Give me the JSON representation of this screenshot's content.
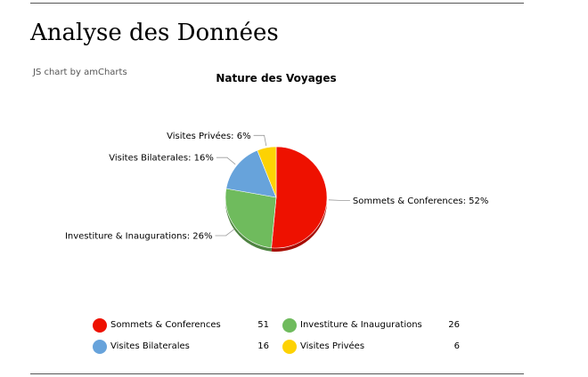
{
  "page": {
    "title": "Analyse des Données"
  },
  "credit": "JS chart by amCharts",
  "chart_data": {
    "type": "pie",
    "title": "Nature des Voyages",
    "slices": [
      {
        "label": "Sommets & Conferences",
        "value": 51,
        "percent_label": "52%",
        "color": "#ee1100"
      },
      {
        "label": "Investiture & Inaugurations",
        "value": 26,
        "percent_label": "26%",
        "color": "#6fbb5d"
      },
      {
        "label": "Visites Bilaterales",
        "value": 16,
        "percent_label": "16%",
        "color": "#67a3db"
      },
      {
        "label": "Visites Privées",
        "value": 6,
        "percent_label": "6%",
        "color": "#fdd203"
      }
    ],
    "legend": "bottom"
  }
}
